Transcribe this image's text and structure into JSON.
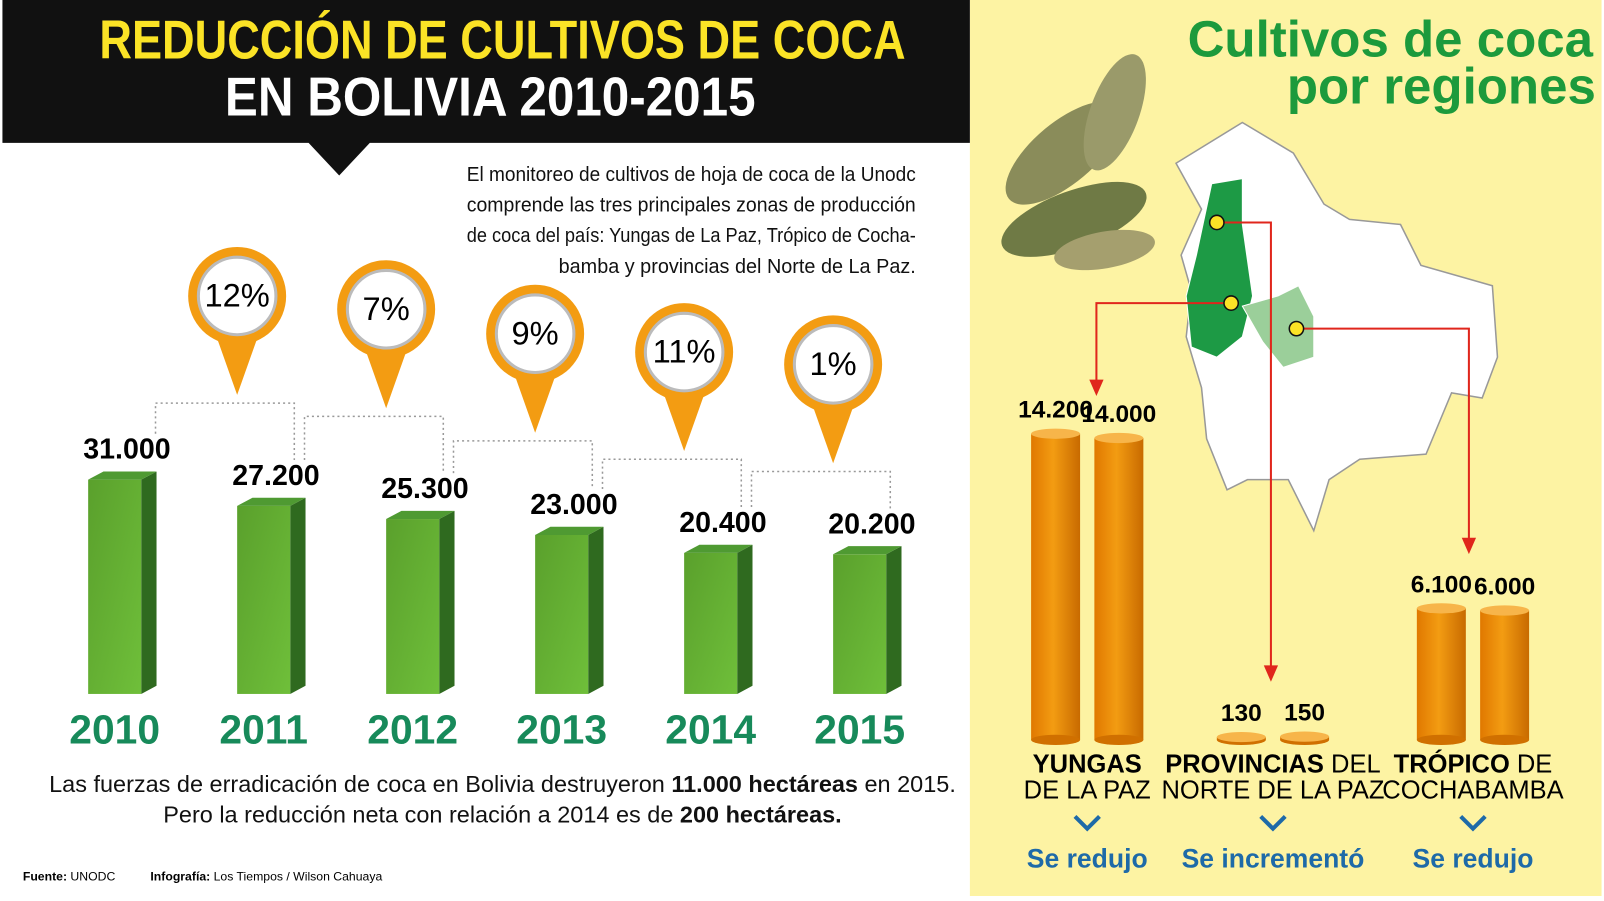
{
  "title": {
    "line1": "REDUCCIÓN DE CULTIVOS DE COCA",
    "line2": "EN BOLIVIA 2010-2015"
  },
  "intro": [
    "El monitoreo de cultivos de hoja de coca de la Unodc",
    "comprende las tres principales zonas de producción",
    "de coca del país: Yungas de La Paz, Trópico de Cocha-",
    "bamba y provincias del Norte de La Paz."
  ],
  "summary": [
    [
      "Las fuerzas de erradicación de coca en Bolivia destruyeron ",
      "11.000 hectáreas",
      " en 2015."
    ],
    [
      "Pero la reducción neta con relación a 2014 es de ",
      "200 hectáreas."
    ]
  ],
  "footer": {
    "source_label": "Fuente:",
    "source": "UNODC",
    "credit_label": "Infografía:",
    "credit": "Los Tiempos / Wilson Cahuaya"
  },
  "regions_title": [
    "Cultivos de coca",
    "por regiones"
  ],
  "chart_data": [
    {
      "type": "bar",
      "categories": [
        "2010",
        "2011",
        "2012",
        "2013",
        "2014",
        "2015"
      ],
      "values": [
        31000,
        27200,
        25300,
        23000,
        20400,
        20200
      ],
      "value_labels": [
        "31.000",
        "27.200",
        "25.300",
        "23.000",
        "20.400",
        "20.200"
      ],
      "color": "#5aa02c",
      "changes": [
        {
          "value": 12,
          "label": "12%"
        },
        {
          "value": 7,
          "label": "7%"
        },
        {
          "value": 9,
          "label": "9%"
        },
        {
          "value": 11,
          "label": "11%"
        },
        {
          "value": 1,
          "label": "1%"
        }
      ]
    },
    {
      "type": "bar",
      "categories": [
        [
          "YUNGAS",
          "DE LA PAZ"
        ],
        [
          "PROVINCIAS",
          " DEL",
          "NORTE DE LA PAZ"
        ],
        [
          "TRÓPICO",
          " DE",
          "COCHABAMBA"
        ]
      ],
      "status": [
        "Se redujo",
        "Se incrementó",
        "Se redujo"
      ],
      "series": [
        {
          "color": "#f39c12",
          "values": [
            14200,
            130,
            6100
          ],
          "value_labels": [
            "14.200",
            "130",
            "6.100"
          ]
        },
        {
          "color": "#f39c12",
          "values": [
            14000,
            150,
            6000
          ],
          "value_labels": [
            "14.000",
            "150",
            "6.000"
          ]
        }
      ]
    }
  ]
}
